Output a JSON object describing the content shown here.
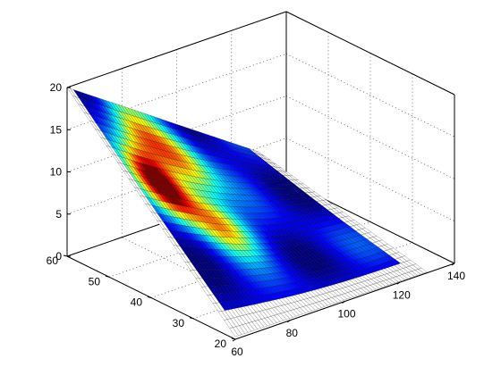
{
  "chart_data": {
    "type": "surface",
    "title": "",
    "xlabel": "",
    "ylabel": "",
    "zlabel": "",
    "grid": true,
    "x_axis": {
      "lim": [
        60,
        140
      ],
      "ticks": [
        "60",
        "80",
        "100",
        "120",
        "140"
      ]
    },
    "y_axis": {
      "lim": [
        20,
        60
      ],
      "ticks": [
        "20",
        "30",
        "40",
        "50",
        "60"
      ]
    },
    "z_axis": {
      "lim": [
        0,
        20
      ],
      "ticks": [
        "0",
        "5",
        "10",
        "15",
        "20"
      ]
    },
    "colormap": "jet",
    "edge_color": "#000000",
    "surface": {
      "x_range": [
        60,
        130
      ],
      "y_range": [
        20,
        60
      ],
      "z_at_corner_x60_y60": 20,
      "z_at_corner_x130_y60": 4.5,
      "z_at_corner_x60_y20": 0.3,
      "z_at_corner_x130_y20": 0.1,
      "color_hotspots": [
        {
          "x": 73,
          "y": 46,
          "level": 0.95
        },
        {
          "x": 85,
          "y": 40,
          "level": 0.6
        },
        {
          "x": 90,
          "y": 52,
          "level": 0.55
        },
        {
          "x": 80,
          "y": 55,
          "level": 0.5
        }
      ]
    }
  }
}
